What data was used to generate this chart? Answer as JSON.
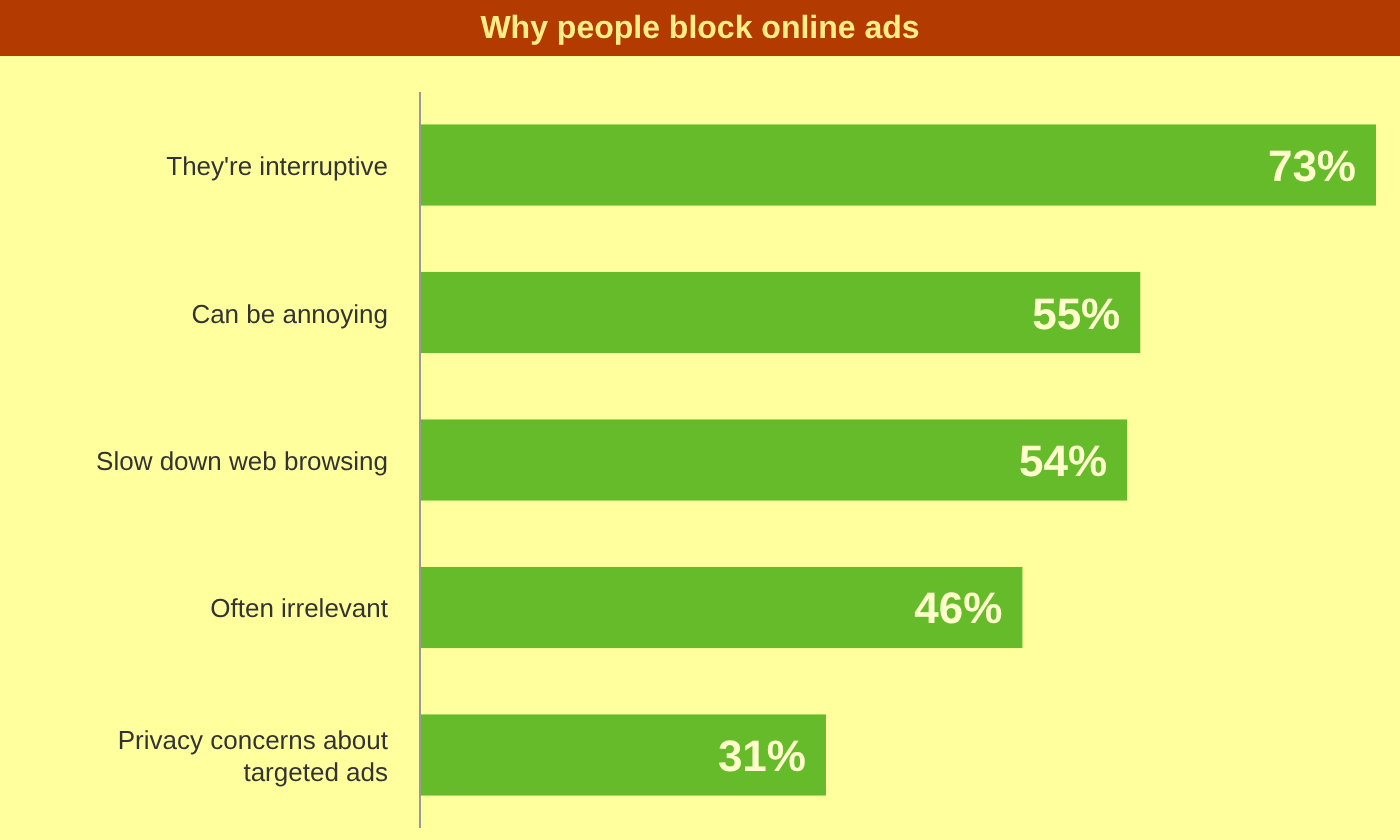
{
  "chart_data": {
    "type": "bar",
    "orientation": "horizontal",
    "title": "Why people block online ads",
    "categories": [
      "They're interruptive",
      "Can be annoying",
      "Slow down web browsing",
      "Often irrelevant",
      "Privacy concerns about targeted ads"
    ],
    "values": [
      73,
      55,
      54,
      46,
      31
    ],
    "value_labels": [
      "73%",
      "55%",
      "54%",
      "46%",
      "31%"
    ],
    "color": "#66bb2a"
  }
}
